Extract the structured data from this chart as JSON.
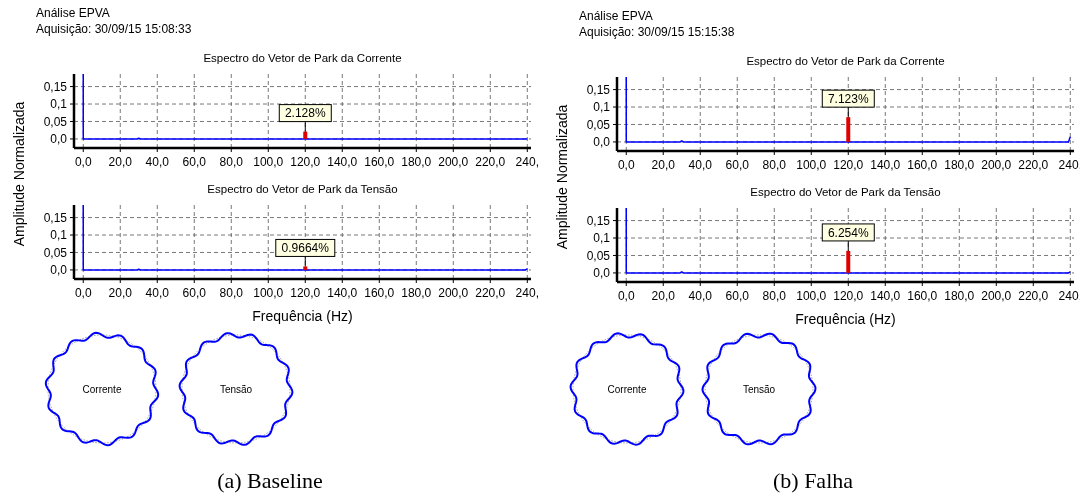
{
  "chart_data": [
    {
      "type": "line",
      "title": "Espectro do Vetor de Park da Corrente",
      "ylabel": "Amplitude Normalizada",
      "annotations": [
        "Análise EPVA",
        "Aquisição: 30/09/15 15:08:33",
        "2.128%"
      ],
      "xlim": [
        -5,
        242
      ],
      "ylim": [
        -0.026,
        0.186
      ],
      "grid": true,
      "xticks": [
        {
          "value": 0,
          "label": "0,0"
        },
        {
          "value": 20,
          "label": "20,0"
        },
        {
          "value": 40,
          "label": "40,0"
        },
        {
          "value": 60,
          "label": "60,0"
        },
        {
          "value": 80,
          "label": "80,0"
        },
        {
          "value": 100,
          "label": "100,0"
        },
        {
          "value": 120,
          "label": "120,0"
        },
        {
          "value": 140,
          "label": "140,0"
        },
        {
          "value": 160,
          "label": "160,0"
        },
        {
          "value": 180,
          "label": "180,0"
        },
        {
          "value": 200,
          "label": "200,0"
        },
        {
          "value": 220,
          "label": "220,0"
        },
        {
          "value": 240,
          "label": "240,"
        }
      ],
      "yticks": [
        {
          "value": 0,
          "label": "0,0"
        },
        {
          "value": 0.05,
          "label": "0,05"
        },
        {
          "value": 0.1,
          "label": "0,1"
        },
        {
          "value": 0.15,
          "label": "0,15"
        }
      ],
      "series": [
        {
          "color": "#0000ff",
          "x": [
            0,
            0,
            2,
            29,
            30,
            31,
            240
          ],
          "values": [
            0.186,
            0,
            0,
            0,
            0.002,
            0,
            0
          ]
        },
        {
          "type": "bar",
          "color": "#e00000",
          "x": [
            120
          ],
          "values": [
            0.021
          ]
        }
      ]
    },
    {
      "type": "line",
      "title": "Espectro do Vetor de Park da Tensão",
      "xlabel": "Frequência (Hz)",
      "annotations": [
        "0.9664%",
        "Corrente",
        "Tensão",
        "(a) Baseline"
      ],
      "xlim": [
        -5,
        242
      ],
      "ylim": [
        -0.026,
        0.186
      ],
      "grid": true,
      "xticks": [
        {
          "value": 0,
          "label": "0,0"
        },
        {
          "value": 20,
          "label": "20,0"
        },
        {
          "value": 40,
          "label": "40,0"
        },
        {
          "value": 60,
          "label": "60,0"
        },
        {
          "value": 80,
          "label": "80,0"
        },
        {
          "value": 100,
          "label": "100,0"
        },
        {
          "value": 120,
          "label": "120,0"
        },
        {
          "value": 140,
          "label": "140,0"
        },
        {
          "value": 160,
          "label": "160,0"
        },
        {
          "value": 180,
          "label": "180,0"
        },
        {
          "value": 200,
          "label": "200,0"
        },
        {
          "value": 220,
          "label": "220,0"
        },
        {
          "value": 240,
          "label": "240,"
        }
      ],
      "yticks": [
        {
          "value": 0,
          "label": "0,0"
        },
        {
          "value": 0.05,
          "label": "0,05"
        },
        {
          "value": 0.1,
          "label": "0,1"
        },
        {
          "value": 0.15,
          "label": "0,15"
        }
      ],
      "series": [
        {
          "color": "#0000ff",
          "x": [
            0,
            0,
            2,
            29,
            30,
            31,
            239,
            240
          ],
          "values": [
            0.186,
            0,
            0,
            0,
            0.002,
            0,
            0,
            0.003
          ]
        },
        {
          "type": "bar",
          "color": "#e00000",
          "x": [
            120
          ],
          "values": [
            0.01
          ]
        }
      ]
    },
    {
      "type": "line",
      "title": "Espectro do Vetor de Park da Corrente",
      "ylabel": "Amplitude Normalizada",
      "annotations": [
        "Análise EPVA",
        "Aquisição: 30/09/15 15:15:38",
        "7.123%"
      ],
      "xlim": [
        -5,
        242
      ],
      "ylim": [
        -0.026,
        0.186
      ],
      "grid": true,
      "xticks": [
        {
          "value": 0,
          "label": "0,0"
        },
        {
          "value": 20,
          "label": "20,0"
        },
        {
          "value": 40,
          "label": "40,0"
        },
        {
          "value": 60,
          "label": "60,0"
        },
        {
          "value": 80,
          "label": "80,0"
        },
        {
          "value": 100,
          "label": "100,0"
        },
        {
          "value": 120,
          "label": "120,0"
        },
        {
          "value": 140,
          "label": "140,0"
        },
        {
          "value": 160,
          "label": "160,0"
        },
        {
          "value": 180,
          "label": "180,0"
        },
        {
          "value": 200,
          "label": "200,0"
        },
        {
          "value": 220,
          "label": "220,0"
        },
        {
          "value": 240,
          "label": "240,"
        }
      ],
      "yticks": [
        {
          "value": 0,
          "label": "0,0"
        },
        {
          "value": 0.05,
          "label": "0,05"
        },
        {
          "value": 0.1,
          "label": "0,1"
        },
        {
          "value": 0.15,
          "label": "0,15"
        }
      ],
      "series": [
        {
          "color": "#0000ff",
          "x": [
            0,
            0,
            2,
            29,
            30,
            31,
            239,
            240
          ],
          "values": [
            0.186,
            0,
            0,
            0,
            0.003,
            0,
            0,
            0.015
          ]
        },
        {
          "type": "bar",
          "color": "#e00000",
          "x": [
            120
          ],
          "values": [
            0.071
          ]
        }
      ]
    },
    {
      "type": "line",
      "title": "Espectro do Vetor de Park da Tensão",
      "xlabel": "Frequência (Hz)",
      "annotations": [
        "6.254%",
        "Corrente",
        "Tensão",
        "(b) Falha"
      ],
      "xlim": [
        -5,
        242
      ],
      "ylim": [
        -0.026,
        0.186
      ],
      "grid": true,
      "xticks": [
        {
          "value": 0,
          "label": "0,0"
        },
        {
          "value": 20,
          "label": "20,0"
        },
        {
          "value": 40,
          "label": "40,0"
        },
        {
          "value": 60,
          "label": "60,0"
        },
        {
          "value": 80,
          "label": "80,0"
        },
        {
          "value": 100,
          "label": "100,0"
        },
        {
          "value": 120,
          "label": "120,0"
        },
        {
          "value": 140,
          "label": "140,0"
        },
        {
          "value": 160,
          "label": "160,0"
        },
        {
          "value": 180,
          "label": "180,0"
        },
        {
          "value": 200,
          "label": "200,0"
        },
        {
          "value": 220,
          "label": "220,0"
        },
        {
          "value": 240,
          "label": "240,"
        }
      ],
      "yticks": [
        {
          "value": 0,
          "label": "0,0"
        },
        {
          "value": 0.05,
          "label": "0,05"
        },
        {
          "value": 0.1,
          "label": "0,1"
        },
        {
          "value": 0.15,
          "label": "0,15"
        }
      ],
      "series": [
        {
          "color": "#0000ff",
          "x": [
            0,
            0,
            2,
            29,
            30,
            31,
            239,
            240
          ],
          "values": [
            0.186,
            0,
            0,
            0,
            0.003,
            0,
            0,
            0.003
          ]
        },
        {
          "type": "bar",
          "color": "#e00000",
          "x": [
            120
          ],
          "values": [
            0.063
          ]
        }
      ]
    }
  ]
}
